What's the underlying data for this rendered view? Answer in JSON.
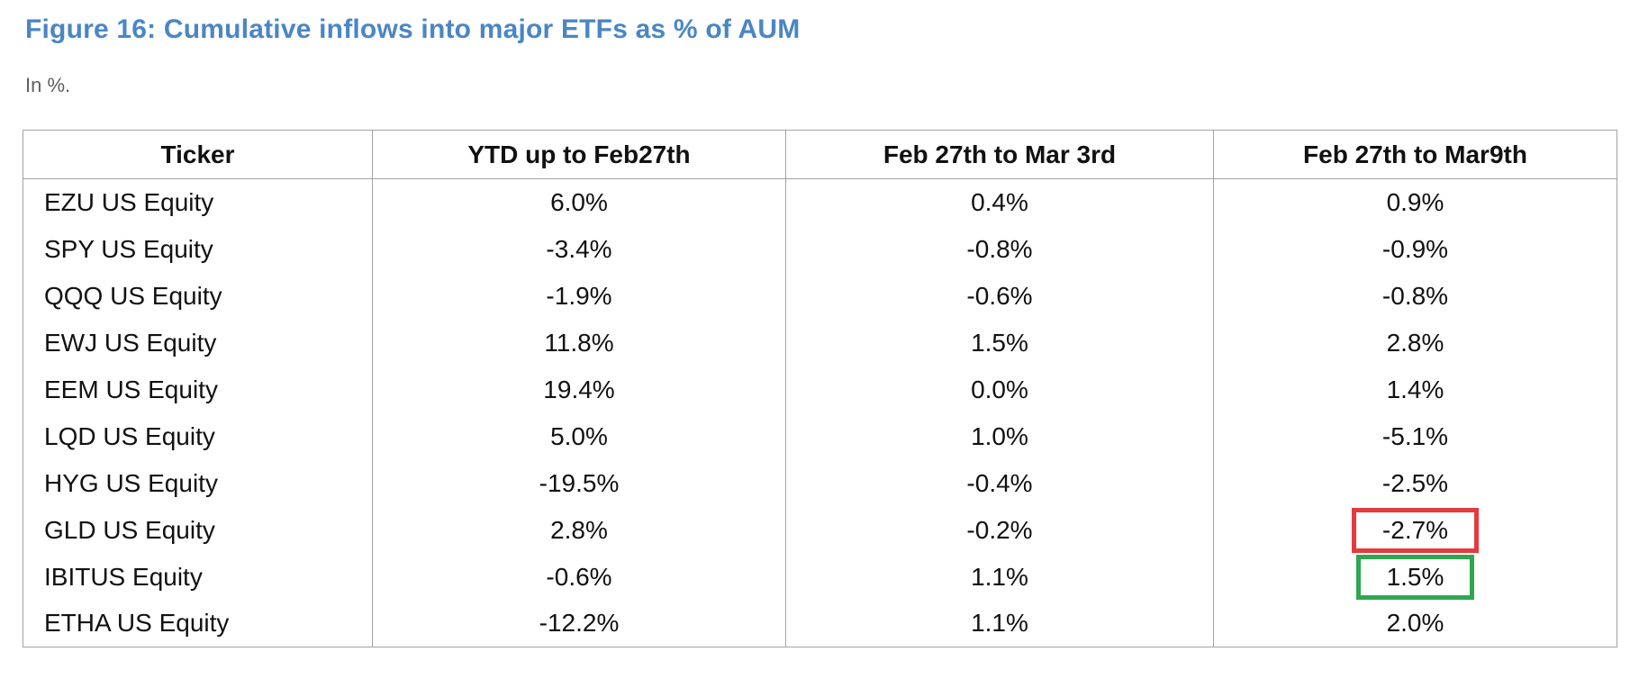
{
  "figure": {
    "title": "Figure 16: Cumulative inflows into major ETFs as % of AUM",
    "subtitle": "In %.",
    "title_color": "#4a86c4"
  },
  "table": {
    "columns": [
      "Ticker",
      "YTD up to Feb27th",
      "Feb 27th to Mar 3rd",
      "Feb 27th to Mar9th"
    ],
    "rows": [
      {
        "ticker": "EZU US Equity",
        "ytd": "6.0%",
        "feb27_mar3": "0.4%",
        "feb27_mar9": "0.9%"
      },
      {
        "ticker": "SPY US Equity",
        "ytd": "-3.4%",
        "feb27_mar3": "-0.8%",
        "feb27_mar9": "-0.9%"
      },
      {
        "ticker": "QQQ US Equity",
        "ytd": "-1.9%",
        "feb27_mar3": "-0.6%",
        "feb27_mar9": "-0.8%"
      },
      {
        "ticker": "EWJ US Equity",
        "ytd": "11.8%",
        "feb27_mar3": "1.5%",
        "feb27_mar9": "2.8%"
      },
      {
        "ticker": "EEM US Equity",
        "ytd": "19.4%",
        "feb27_mar3": "0.0%",
        "feb27_mar9": "1.4%"
      },
      {
        "ticker": "LQD US Equity",
        "ytd": "5.0%",
        "feb27_mar3": "1.0%",
        "feb27_mar9": "-5.1%"
      },
      {
        "ticker": "HYG US Equity",
        "ytd": "-19.5%",
        "feb27_mar3": "-0.4%",
        "feb27_mar9": "-2.5%"
      },
      {
        "ticker": "GLD US Equity",
        "ytd": "2.8%",
        "feb27_mar3": "-0.2%",
        "feb27_mar9": "-2.7%",
        "highlight": "red"
      },
      {
        "ticker": "IBITUS Equity",
        "ytd": "-0.6%",
        "feb27_mar3": "1.1%",
        "feb27_mar9": "1.5%",
        "highlight": "green"
      },
      {
        "ticker": "ETHA US Equity",
        "ytd": "-12.2%",
        "feb27_mar3": "1.1%",
        "feb27_mar9": "2.0%"
      }
    ],
    "highlight_colors": {
      "red": "#e33b3e",
      "green": "#2fa74e"
    }
  },
  "chart_data": {
    "type": "table",
    "title": "Figure 16: Cumulative inflows into major ETFs as % of AUM",
    "subtitle": "In %.",
    "columns": [
      "Ticker",
      "YTD up to Feb27th",
      "Feb 27th to Mar 3rd",
      "Feb 27th to Mar9th"
    ],
    "rows": [
      [
        "EZU US Equity",
        "6.0%",
        "0.4%",
        "0.9%"
      ],
      [
        "SPY US Equity",
        "-3.4%",
        "-0.8%",
        "-0.9%"
      ],
      [
        "QQQ US Equity",
        "-1.9%",
        "-0.6%",
        "-0.8%"
      ],
      [
        "EWJ US Equity",
        "11.8%",
        "1.5%",
        "2.8%"
      ],
      [
        "EEM US Equity",
        "19.4%",
        "0.0%",
        "1.4%"
      ],
      [
        "LQD US Equity",
        "5.0%",
        "1.0%",
        "-5.1%"
      ],
      [
        "HYG US Equity",
        "-19.5%",
        "-0.4%",
        "-2.5%"
      ],
      [
        "GLD US Equity",
        "2.8%",
        "-0.2%",
        "-2.7%"
      ],
      [
        "IBITUS Equity",
        "-0.6%",
        "1.1%",
        "1.5%"
      ],
      [
        "ETHA US Equity",
        "-12.2%",
        "1.1%",
        "2.0%"
      ]
    ],
    "annotations": [
      {
        "row": "GLD US Equity",
        "column": "Feb 27th to Mar9th",
        "value": "-2.7%",
        "box_color": "red"
      },
      {
        "row": "IBITUS Equity",
        "column": "Feb 27th to Mar9th",
        "value": "1.5%",
        "box_color": "green"
      }
    ]
  }
}
